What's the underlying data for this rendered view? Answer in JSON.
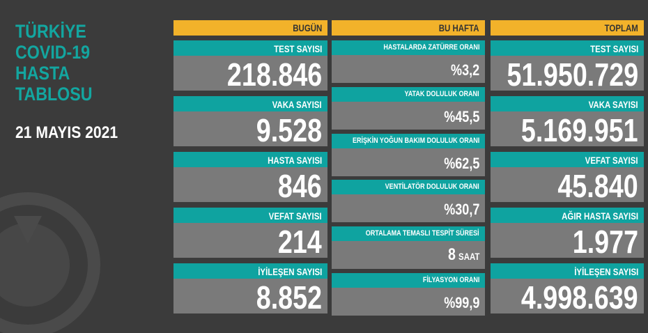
{
  "title": [
    "TÜRKİYE",
    "COVID-19",
    "HASTA",
    "TABLOSU"
  ],
  "date": "21 MAYIS 2021",
  "columns": [
    {
      "header": "BUGÜN",
      "items": [
        {
          "label": "TEST SAYISI",
          "value": "218.846"
        },
        {
          "label": "VAKA SAYISI",
          "value": "9.528"
        },
        {
          "label": "HASTA SAYISI",
          "value": "846"
        },
        {
          "label": "VEFAT SAYISI",
          "value": "214"
        },
        {
          "label": "İYİLEŞEN SAYISI",
          "value": "8.852"
        }
      ]
    },
    {
      "header": "BU HAFTA",
      "items": [
        {
          "label": "HASTALARDA ZATÜRRE ORANI",
          "value": "%3,2"
        },
        {
          "label": "YATAK DOLULUK ORANI",
          "value": "%45,5"
        },
        {
          "label": "ERİŞKİN YOĞUN BAKIM DOLULUK ORANI",
          "value": "%62,5"
        },
        {
          "label": "VENTİLATÖR DOLULUK ORANI",
          "value": "%30,7"
        },
        {
          "label": "ORTALAMA TEMASLI TESPİT SÜRESİ",
          "value": "8",
          "unit": "SAAT"
        },
        {
          "label": "FİLYASYON ORANI",
          "value": "%99,9"
        }
      ]
    },
    {
      "header": "TOPLAM",
      "items": [
        {
          "label": "TEST SAYISI",
          "value": "51.950.729"
        },
        {
          "label": "VAKA SAYISI",
          "value": "5.169.951"
        },
        {
          "label": "VEFAT SAYISI",
          "value": "45.840"
        },
        {
          "label": "AĞIR HASTA SAYISI",
          "value": "1.977"
        },
        {
          "label": "İYİLEŞEN SAYISI",
          "value": "4.998.639"
        }
      ]
    }
  ]
}
